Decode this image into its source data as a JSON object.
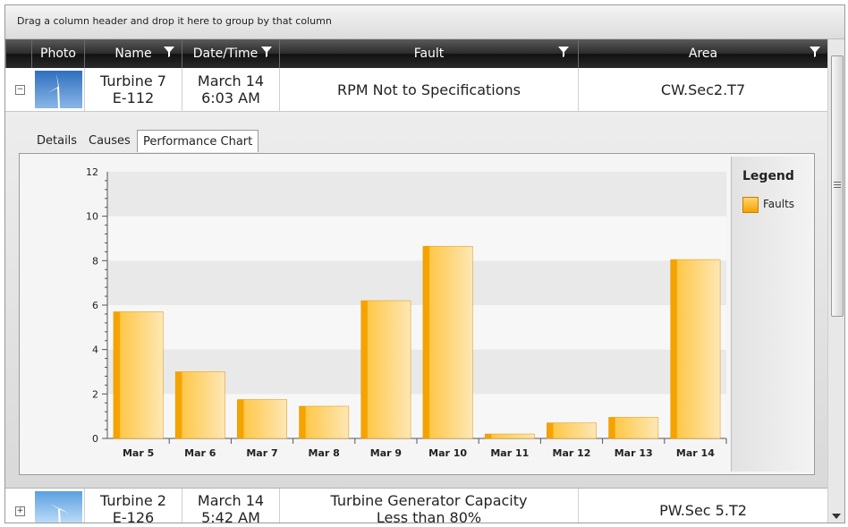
{
  "group_panel": {
    "hint": "Drag a column header and drop it here to group by that column"
  },
  "columns": [
    "Photo",
    "Name",
    "Date/Time",
    "Fault",
    "Area"
  ],
  "rows": [
    {
      "name_line1": "Turbine 7",
      "name_line2": "E-112",
      "date_line1": "March 14",
      "date_line2": "6:03 AM",
      "fault_line1": "RPM Not to Specifications",
      "fault_line2": "",
      "area": "CW.Sec2.T7",
      "expanded": true
    },
    {
      "name_line1": "Turbine 2",
      "name_line2": "E-126",
      "date_line1": "March 14",
      "date_line2": "5:42 AM",
      "fault_line1": "Turbine Generator Capacity",
      "fault_line2": "Less than 80%",
      "area": "PW.Sec 5.T2",
      "expanded": false
    }
  ],
  "detail_tabs": [
    "Details",
    "Causes",
    "Performance Chart"
  ],
  "active_tab": "Performance Chart",
  "legend": {
    "title": "Legend",
    "items": [
      "Faults"
    ]
  },
  "colors": {
    "bar": "#f5a300",
    "bar_light": "#fde7b5",
    "header_dark": "#1e1e1e"
  },
  "icons": {
    "filter": "filter-icon",
    "expand": "minus-box-icon",
    "collapse": "plus-box-icon"
  },
  "chart_data": {
    "type": "bar",
    "categories": [
      "Mar 5",
      "Mar 6",
      "Mar 7",
      "Mar 8",
      "Mar 9",
      "Mar 10",
      "Mar 11",
      "Mar 12",
      "Mar 13",
      "Mar 14"
    ],
    "series": [
      {
        "name": "Faults",
        "values": [
          5.7,
          3.0,
          1.75,
          1.45,
          6.2,
          8.65,
          0.2,
          0.7,
          0.95,
          8.05
        ]
      }
    ],
    "yticks": [
      0,
      2,
      4,
      6,
      8,
      10,
      12
    ],
    "ylim": [
      0,
      12
    ],
    "title": "",
    "xlabel": "",
    "ylabel": "",
    "grid": "alternating horizontal bands",
    "legend_position": "right"
  }
}
